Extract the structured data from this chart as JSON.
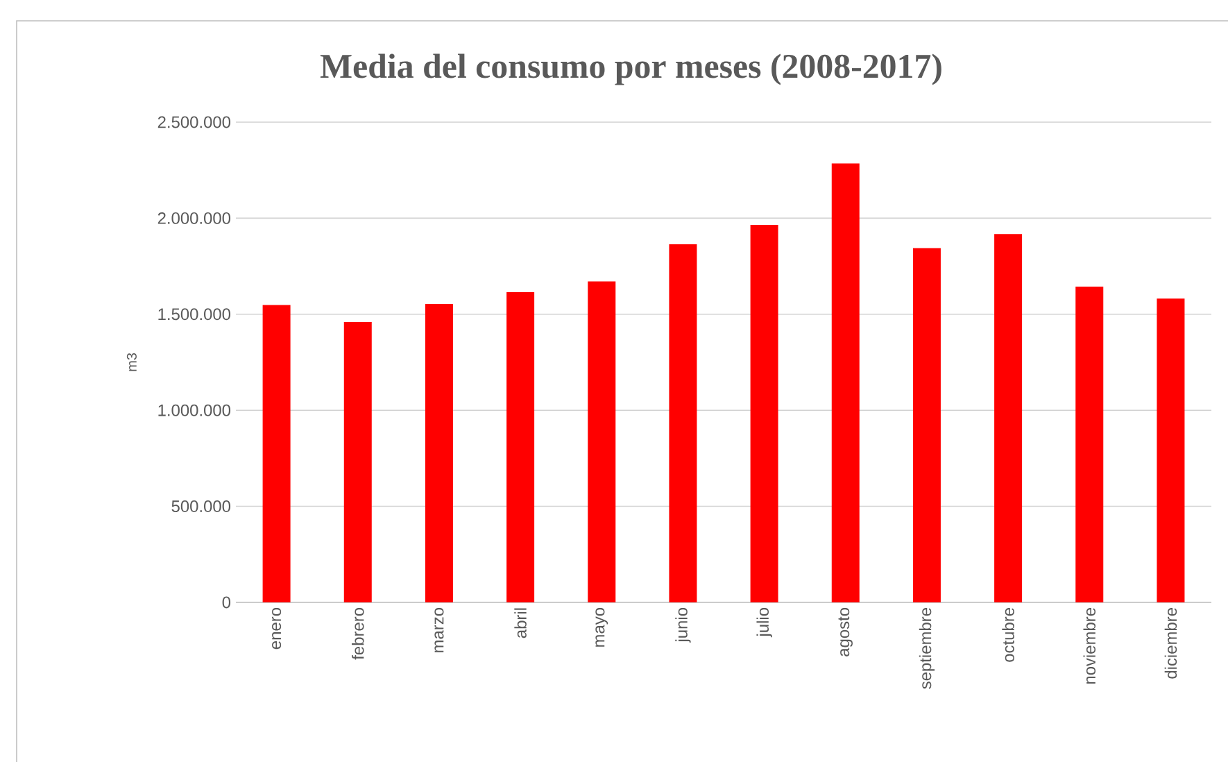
{
  "chart_data": {
    "type": "bar",
    "title": "Media del consumo por meses (2008-2017)",
    "ylabel": "m3",
    "categories": [
      "enero",
      "febrero",
      "marzo",
      "abril",
      "mayo",
      "junio",
      "julio",
      "agosto",
      "septiembre",
      "octubre",
      "noviembre",
      "diciembre"
    ],
    "values": [
      1548000,
      1459000,
      1553000,
      1615000,
      1671000,
      1864000,
      1965000,
      2285000,
      1844000,
      1917000,
      1644000,
      1581000
    ],
    "color": "#ff0000",
    "ylim": [
      0,
      2500000
    ],
    "yticks": [
      0,
      {
        "value": 500000,
        "label": "500.000"
      },
      {
        "value": 1000000,
        "label": "1.000.000"
      },
      {
        "value": 1500000,
        "label": "1.500.000"
      },
      {
        "value": 2000000,
        "label": "2.000.000"
      },
      {
        "value": 2500000,
        "label": "2.500.000"
      }
    ],
    "grid": "y"
  }
}
